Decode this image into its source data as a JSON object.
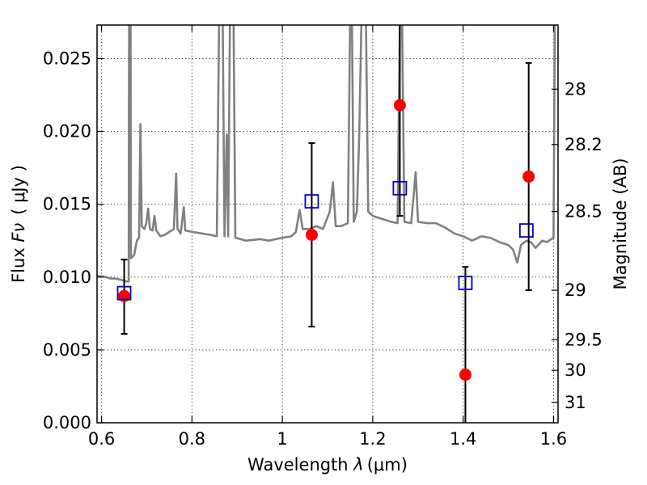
{
  "chart_data": {
    "type": "scatter",
    "xlabel": "Wavelength  λ (μm)",
    "xlabel_parts": {
      "text": "Wavelength  ",
      "symbol": "λ",
      "unit": "(μm)"
    },
    "ylabel": "Flux  Fν  ( μJy )",
    "ylabel_parts": {
      "text": "Flux  ",
      "symbol": "Fν",
      "unit": "( μJy )"
    },
    "y2label": "Magnitude (AB)",
    "xlim": [
      0.59,
      1.61
    ],
    "ylim": [
      0.0,
      0.0273
    ],
    "x_ticks": [
      "0.6",
      "0.8",
      "1",
      "1.2",
      "1.4",
      "1.6"
    ],
    "x_tick_values": [
      0.6,
      0.8,
      1.0,
      1.2,
      1.4,
      1.6
    ],
    "y_ticks": [
      "0.000",
      "0.005",
      "0.010",
      "0.015",
      "0.020",
      "0.025"
    ],
    "y_tick_values": [
      0.0,
      0.005,
      0.01,
      0.015,
      0.02,
      0.025
    ],
    "y2_ticks": [
      {
        "label": "28",
        "flux": 0.0229
      },
      {
        "label": "28.2",
        "flux": 0.0191
      },
      {
        "label": "28.5",
        "flux": 0.0145
      },
      {
        "label": "29",
        "flux": 0.0091
      },
      {
        "label": "29.5",
        "flux": 0.0057
      },
      {
        "label": "30",
        "flux": 0.0036
      },
      {
        "label": "31",
        "flux": 0.0014
      }
    ],
    "grid": true,
    "series": [
      {
        "kind": "line",
        "color": "#808080",
        "points": [
          [
            0.59,
            0.0101
          ],
          [
            0.61,
            0.01
          ],
          [
            0.62,
            0.0099
          ],
          [
            0.63,
            0.0099
          ],
          [
            0.645,
            0.0098
          ],
          [
            0.655,
            0.0097
          ],
          [
            0.66,
            0.0097
          ],
          [
            0.661,
            0.029
          ],
          [
            0.664,
            0.029
          ],
          [
            0.665,
            0.0113
          ],
          [
            0.672,
            0.0115
          ],
          [
            0.678,
            0.0125
          ],
          [
            0.683,
            0.0127
          ],
          [
            0.686,
            0.0205
          ],
          [
            0.689,
            0.0135
          ],
          [
            0.695,
            0.0133
          ],
          [
            0.699,
            0.0137
          ],
          [
            0.703,
            0.0147
          ],
          [
            0.707,
            0.0133
          ],
          [
            0.713,
            0.0132
          ],
          [
            0.717,
            0.0142
          ],
          [
            0.721,
            0.0132
          ],
          [
            0.73,
            0.0128
          ],
          [
            0.74,
            0.0129
          ],
          [
            0.75,
            0.0131
          ],
          [
            0.76,
            0.0133
          ],
          [
            0.765,
            0.0171
          ],
          [
            0.768,
            0.0133
          ],
          [
            0.775,
            0.013
          ],
          [
            0.782,
            0.0148
          ],
          [
            0.785,
            0.0132
          ],
          [
            0.8,
            0.0131
          ],
          [
            0.82,
            0.013
          ],
          [
            0.84,
            0.0129
          ],
          [
            0.855,
            0.0128
          ],
          [
            0.86,
            0.0275
          ],
          [
            0.868,
            0.0275
          ],
          [
            0.872,
            0.0128
          ],
          [
            0.877,
            0.0198
          ],
          [
            0.88,
            0.0128
          ],
          [
            0.884,
            0.0275
          ],
          [
            0.892,
            0.0275
          ],
          [
            0.896,
            0.0127
          ],
          [
            0.92,
            0.0125
          ],
          [
            0.95,
            0.0126
          ],
          [
            0.97,
            0.0125
          ],
          [
            1.0,
            0.0127
          ],
          [
            1.02,
            0.0128
          ],
          [
            1.03,
            0.0131
          ],
          [
            1.038,
            0.0146
          ],
          [
            1.045,
            0.0133
          ],
          [
            1.06,
            0.0133
          ],
          [
            1.075,
            0.0135
          ],
          [
            1.09,
            0.0133
          ],
          [
            1.105,
            0.0145
          ],
          [
            1.112,
            0.0165
          ],
          [
            1.118,
            0.0135
          ],
          [
            1.13,
            0.0135
          ],
          [
            1.145,
            0.0137
          ],
          [
            1.15,
            0.0275
          ],
          [
            1.154,
            0.0275
          ],
          [
            1.158,
            0.0138
          ],
          [
            1.165,
            0.0145
          ],
          [
            1.17,
            0.0196
          ],
          [
            1.175,
            0.0275
          ],
          [
            1.185,
            0.0275
          ],
          [
            1.19,
            0.0145
          ],
          [
            1.2,
            0.0142
          ],
          [
            1.22,
            0.014
          ],
          [
            1.24,
            0.0138
          ],
          [
            1.255,
            0.0137
          ],
          [
            1.26,
            0.0275
          ],
          [
            1.265,
            0.0275
          ],
          [
            1.27,
            0.0138
          ],
          [
            1.285,
            0.0137
          ],
          [
            1.295,
            0.0172
          ],
          [
            1.3,
            0.0138
          ],
          [
            1.32,
            0.0137
          ],
          [
            1.34,
            0.0137
          ],
          [
            1.36,
            0.0134
          ],
          [
            1.38,
            0.013
          ],
          [
            1.4,
            0.0128
          ],
          [
            1.42,
            0.0125
          ],
          [
            1.44,
            0.0128
          ],
          [
            1.46,
            0.0127
          ],
          [
            1.48,
            0.0124
          ],
          [
            1.5,
            0.0122
          ],
          [
            1.51,
            0.0119
          ],
          [
            1.52,
            0.011
          ],
          [
            1.528,
            0.0122
          ],
          [
            1.54,
            0.0125
          ],
          [
            1.55,
            0.0124
          ],
          [
            1.56,
            0.012
          ],
          [
            1.575,
            0.0125
          ],
          [
            1.585,
            0.0124
          ],
          [
            1.595,
            0.0126
          ],
          [
            1.6,
            0.0127
          ],
          [
            1.603,
            0.0275
          ],
          [
            1.61,
            0.0275
          ]
        ]
      },
      {
        "kind": "scatter",
        "marker": "circle",
        "color": "#ff0000",
        "points": [
          {
            "x": 0.65,
            "y": 0.0087,
            "yerr_low": 0.0061,
            "yerr_high": 0.0112
          },
          {
            "x": 1.065,
            "y": 0.0129,
            "yerr_low": 0.0066,
            "yerr_high": 0.0192
          },
          {
            "x": 1.26,
            "y": 0.0218,
            "yerr_low": 0.0142,
            "yerr_high": 0.0275
          },
          {
            "x": 1.405,
            "y": 0.0033,
            "yerr_low": 0.0,
            "yerr_high": 0.0107
          },
          {
            "x": 1.545,
            "y": 0.0169,
            "yerr_low": 0.0091,
            "yerr_high": 0.0247
          }
        ]
      },
      {
        "kind": "scatter",
        "marker": "open-square",
        "color": "#0000bb",
        "points": [
          {
            "x": 0.65,
            "y": 0.0089
          },
          {
            "x": 1.065,
            "y": 0.0152
          },
          {
            "x": 1.26,
            "y": 0.0161
          },
          {
            "x": 1.405,
            "y": 0.0096
          },
          {
            "x": 1.54,
            "y": 0.0132
          }
        ]
      }
    ]
  }
}
